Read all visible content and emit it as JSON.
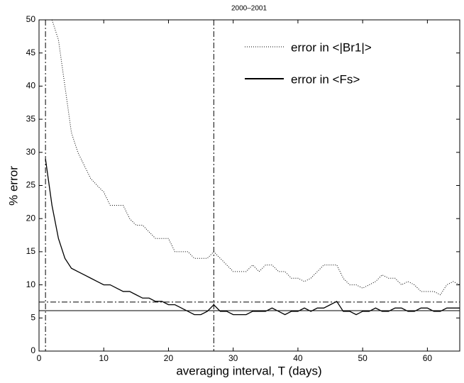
{
  "chart_data": {
    "type": "line",
    "title": "2000–2001",
    "xlabel": "averaging interval, T (days)",
    "ylabel": "% error",
    "x": [
      1,
      2,
      3,
      4,
      5,
      6,
      7,
      8,
      9,
      10,
      11,
      12,
      13,
      14,
      15,
      16,
      17,
      18,
      19,
      20,
      21,
      22,
      23,
      24,
      25,
      26,
      27,
      28,
      29,
      30,
      31,
      32,
      33,
      34,
      35,
      36,
      37,
      38,
      39,
      40,
      41,
      42,
      43,
      44,
      45,
      46,
      47,
      48,
      49,
      50,
      51,
      52,
      53,
      54,
      55,
      56,
      57,
      58,
      59,
      60,
      61,
      62,
      63,
      64,
      65
    ],
    "series": [
      {
        "name": "error in <|Br1|>",
        "color": "#000000",
        "style": "dotted",
        "values": [
          null,
          50,
          47,
          40,
          33,
          30,
          28,
          26,
          25,
          24,
          22,
          22,
          22,
          20,
          19,
          19,
          18,
          17,
          17,
          17,
          15,
          15,
          15,
          14,
          14,
          14,
          15,
          14,
          13,
          12,
          12,
          12,
          13,
          12,
          13,
          13,
          12,
          12,
          11,
          11,
          10.5,
          11,
          12,
          13,
          13,
          13,
          11,
          10,
          10,
          9.5,
          10,
          10.5,
          11.5,
          11,
          11,
          10,
          10.5,
          10,
          9,
          9,
          9,
          8.5,
          10,
          10.5,
          10
        ]
      },
      {
        "name": "error in <Fs>",
        "color": "#000000",
        "style": "solid",
        "values": [
          29,
          22,
          17,
          14,
          12.5,
          12,
          11.5,
          11,
          10.5,
          10,
          10,
          9.5,
          9,
          9,
          8.5,
          8,
          8,
          7.5,
          7.5,
          7,
          7,
          6.5,
          6,
          5.5,
          5.5,
          6,
          7,
          6,
          6,
          5.5,
          5.5,
          5.5,
          6,
          6,
          6,
          6.5,
          6,
          5.5,
          6,
          6,
          6.5,
          6,
          6.5,
          6.5,
          7,
          7.5,
          6,
          6,
          5.5,
          6,
          6,
          6.5,
          6,
          6,
          6.5,
          6.5,
          6,
          6,
          6.5,
          6.5,
          6,
          6,
          6.5,
          6.5,
          6.5
        ]
      }
    ],
    "vlines": [
      1,
      27
    ],
    "hlines": [
      {
        "value": 7.4,
        "style": "dashdot"
      },
      {
        "value": 6.1,
        "style": "solid"
      }
    ],
    "xlim": [
      0,
      65
    ],
    "xticks": [
      0,
      10,
      20,
      30,
      40,
      50,
      60
    ],
    "ylim": [
      0,
      50
    ],
    "yticks": [
      0,
      5,
      10,
      15,
      20,
      25,
      30,
      35,
      40,
      45,
      50
    ],
    "grid": false,
    "legend": "upper right"
  }
}
